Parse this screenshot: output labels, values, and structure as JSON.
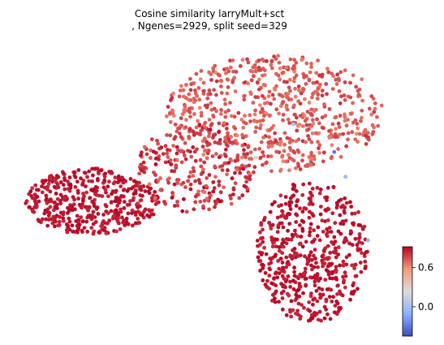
{
  "title": {
    "line1": "Cosine similarity larryMult+sct",
    "line2": ", Ngenes=2929, split seed=329"
  },
  "colorbar": {
    "colormap": "coolwarm",
    "ticks": [
      {
        "value": 0.0,
        "label": "0.0"
      },
      {
        "value": 0.6,
        "label": "0.6"
      }
    ]
  },
  "chart_data": {
    "type": "scatter",
    "title": "Cosine similarity larryMult+sct\n, Ngenes=2929, split seed=329",
    "axes_visible": false,
    "color_encoding": "cosine similarity",
    "color_range": [
      -0.45,
      0.92
    ],
    "colorbar_ticks": [
      0.0,
      0.6
    ],
    "xlim": [
      0,
      1
    ],
    "ylim": [
      0,
      1
    ],
    "regions": [
      {
        "name": "upper-right lobe",
        "x_range": [
          0.38,
          0.96
        ],
        "y_range": [
          0.55,
          0.97
        ],
        "value_mean": 0.72,
        "value_spread": 0.06,
        "points": 620
      },
      {
        "name": "left lobe",
        "x_range": [
          0.0,
          0.36
        ],
        "y_range": [
          0.32,
          0.56
        ],
        "value_mean": 0.88,
        "value_spread": 0.03,
        "points": 430
      },
      {
        "name": "central bridge",
        "x_range": [
          0.3,
          0.62
        ],
        "y_range": [
          0.4,
          0.72
        ],
        "value_mean": 0.8,
        "value_spread": 0.08,
        "points": 260
      },
      {
        "name": "lower-right lobe",
        "x_range": [
          0.62,
          0.92
        ],
        "y_range": [
          0.0,
          0.52
        ],
        "value_mean": 0.88,
        "value_spread": 0.03,
        "points": 520
      }
    ],
    "outliers": [
      {
        "x": 0.72,
        "y": 0.72,
        "value": 0.05
      },
      {
        "x": 0.83,
        "y": 0.62,
        "value": -0.3
      },
      {
        "x": 0.86,
        "y": 0.53,
        "value": -0.05
      },
      {
        "x": 0.92,
        "y": 0.3,
        "value": -0.1
      },
      {
        "x": 0.62,
        "y": 0.6,
        "value": 0.3
      }
    ]
  }
}
